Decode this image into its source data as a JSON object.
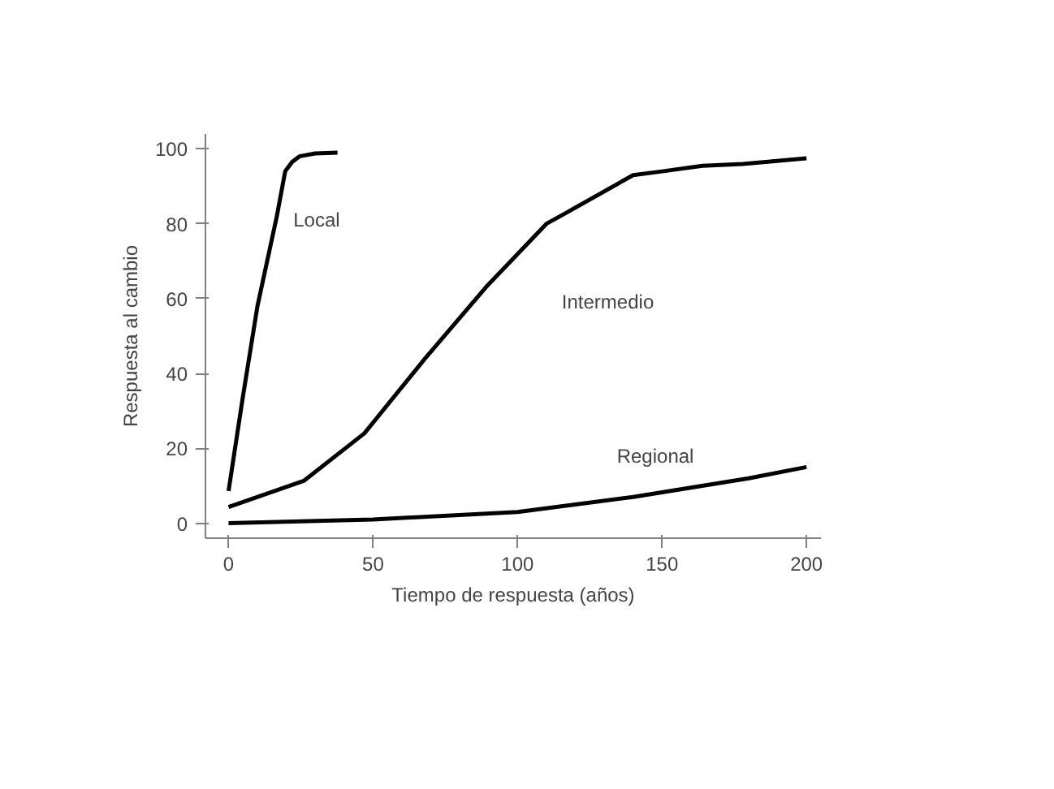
{
  "chart_data": {
    "type": "line",
    "xlabel": "Tiempo de respuesta (años)",
    "ylabel": "Respuesta al cambio",
    "xlim": [
      -8,
      205
    ],
    "ylim": [
      -4,
      104
    ],
    "xticks": [
      0,
      50,
      100,
      150,
      200
    ],
    "yticks": [
      0,
      20,
      40,
      60,
      80,
      100
    ],
    "grid": false,
    "marker": "none",
    "line_style": "solid",
    "series": [
      {
        "name": "Local",
        "color": "#000000",
        "x": [
          0,
          5,
          10,
          16.7,
          19.6,
          22,
          24.5,
          30,
          37.7
        ],
        "values": [
          8.6,
          34,
          58,
          82,
          94,
          96.5,
          98,
          98.8,
          99
        ]
      },
      {
        "name": "Intermedio",
        "color": "#000000",
        "x": [
          0,
          26,
          47,
          68,
          89,
          110,
          117,
          140,
          150,
          164,
          178,
          200
        ],
        "values": [
          4.3,
          11.3,
          24,
          44,
          63,
          80,
          83,
          93,
          94,
          95.5,
          96,
          97.5
        ]
      },
      {
        "name": "Regional",
        "color": "#000000",
        "x": [
          0,
          50,
          100,
          120,
          140,
          160,
          180,
          200
        ],
        "values": [
          0,
          1,
          3,
          5,
          7,
          9.5,
          12,
          15
        ]
      }
    ]
  }
}
